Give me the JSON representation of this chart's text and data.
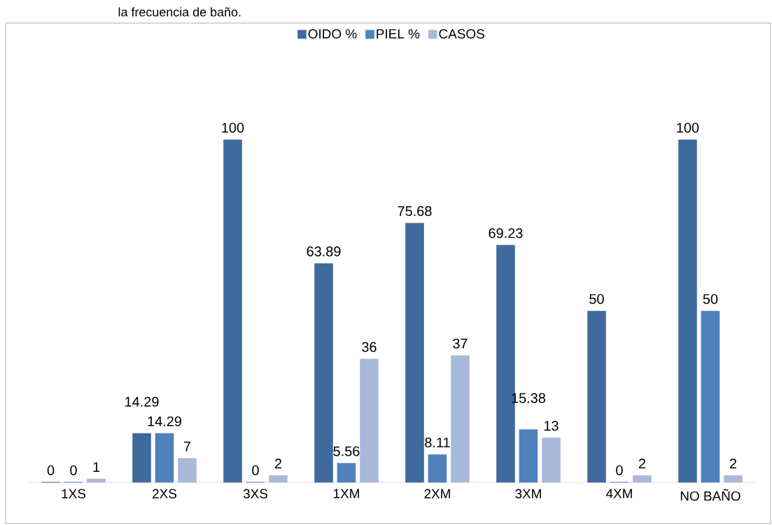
{
  "chart_data": {
    "type": "bar",
    "annotations": [
      "la frecuencia de baño."
    ],
    "categories": [
      "1XS",
      "2XS",
      "3XS",
      "1XM",
      "2XM",
      "3XM",
      "4XM",
      "NO BAÑO"
    ],
    "series": [
      {
        "name": "OIDO %",
        "color": "#3f6a9e",
        "values": [
          0,
          14.29,
          100,
          63.89,
          75.68,
          69.23,
          50,
          100
        ]
      },
      {
        "name": "PIEL %",
        "color": "#4f81bd",
        "values": [
          0,
          14.29,
          0,
          5.56,
          8.11,
          15.38,
          0,
          50
        ]
      },
      {
        "name": "CASOS",
        "color": "#a9b9d8",
        "values": [
          1,
          7,
          2,
          36,
          37,
          13,
          2,
          2
        ]
      }
    ],
    "data_labels": true,
    "legend": "top",
    "grid": false
  }
}
